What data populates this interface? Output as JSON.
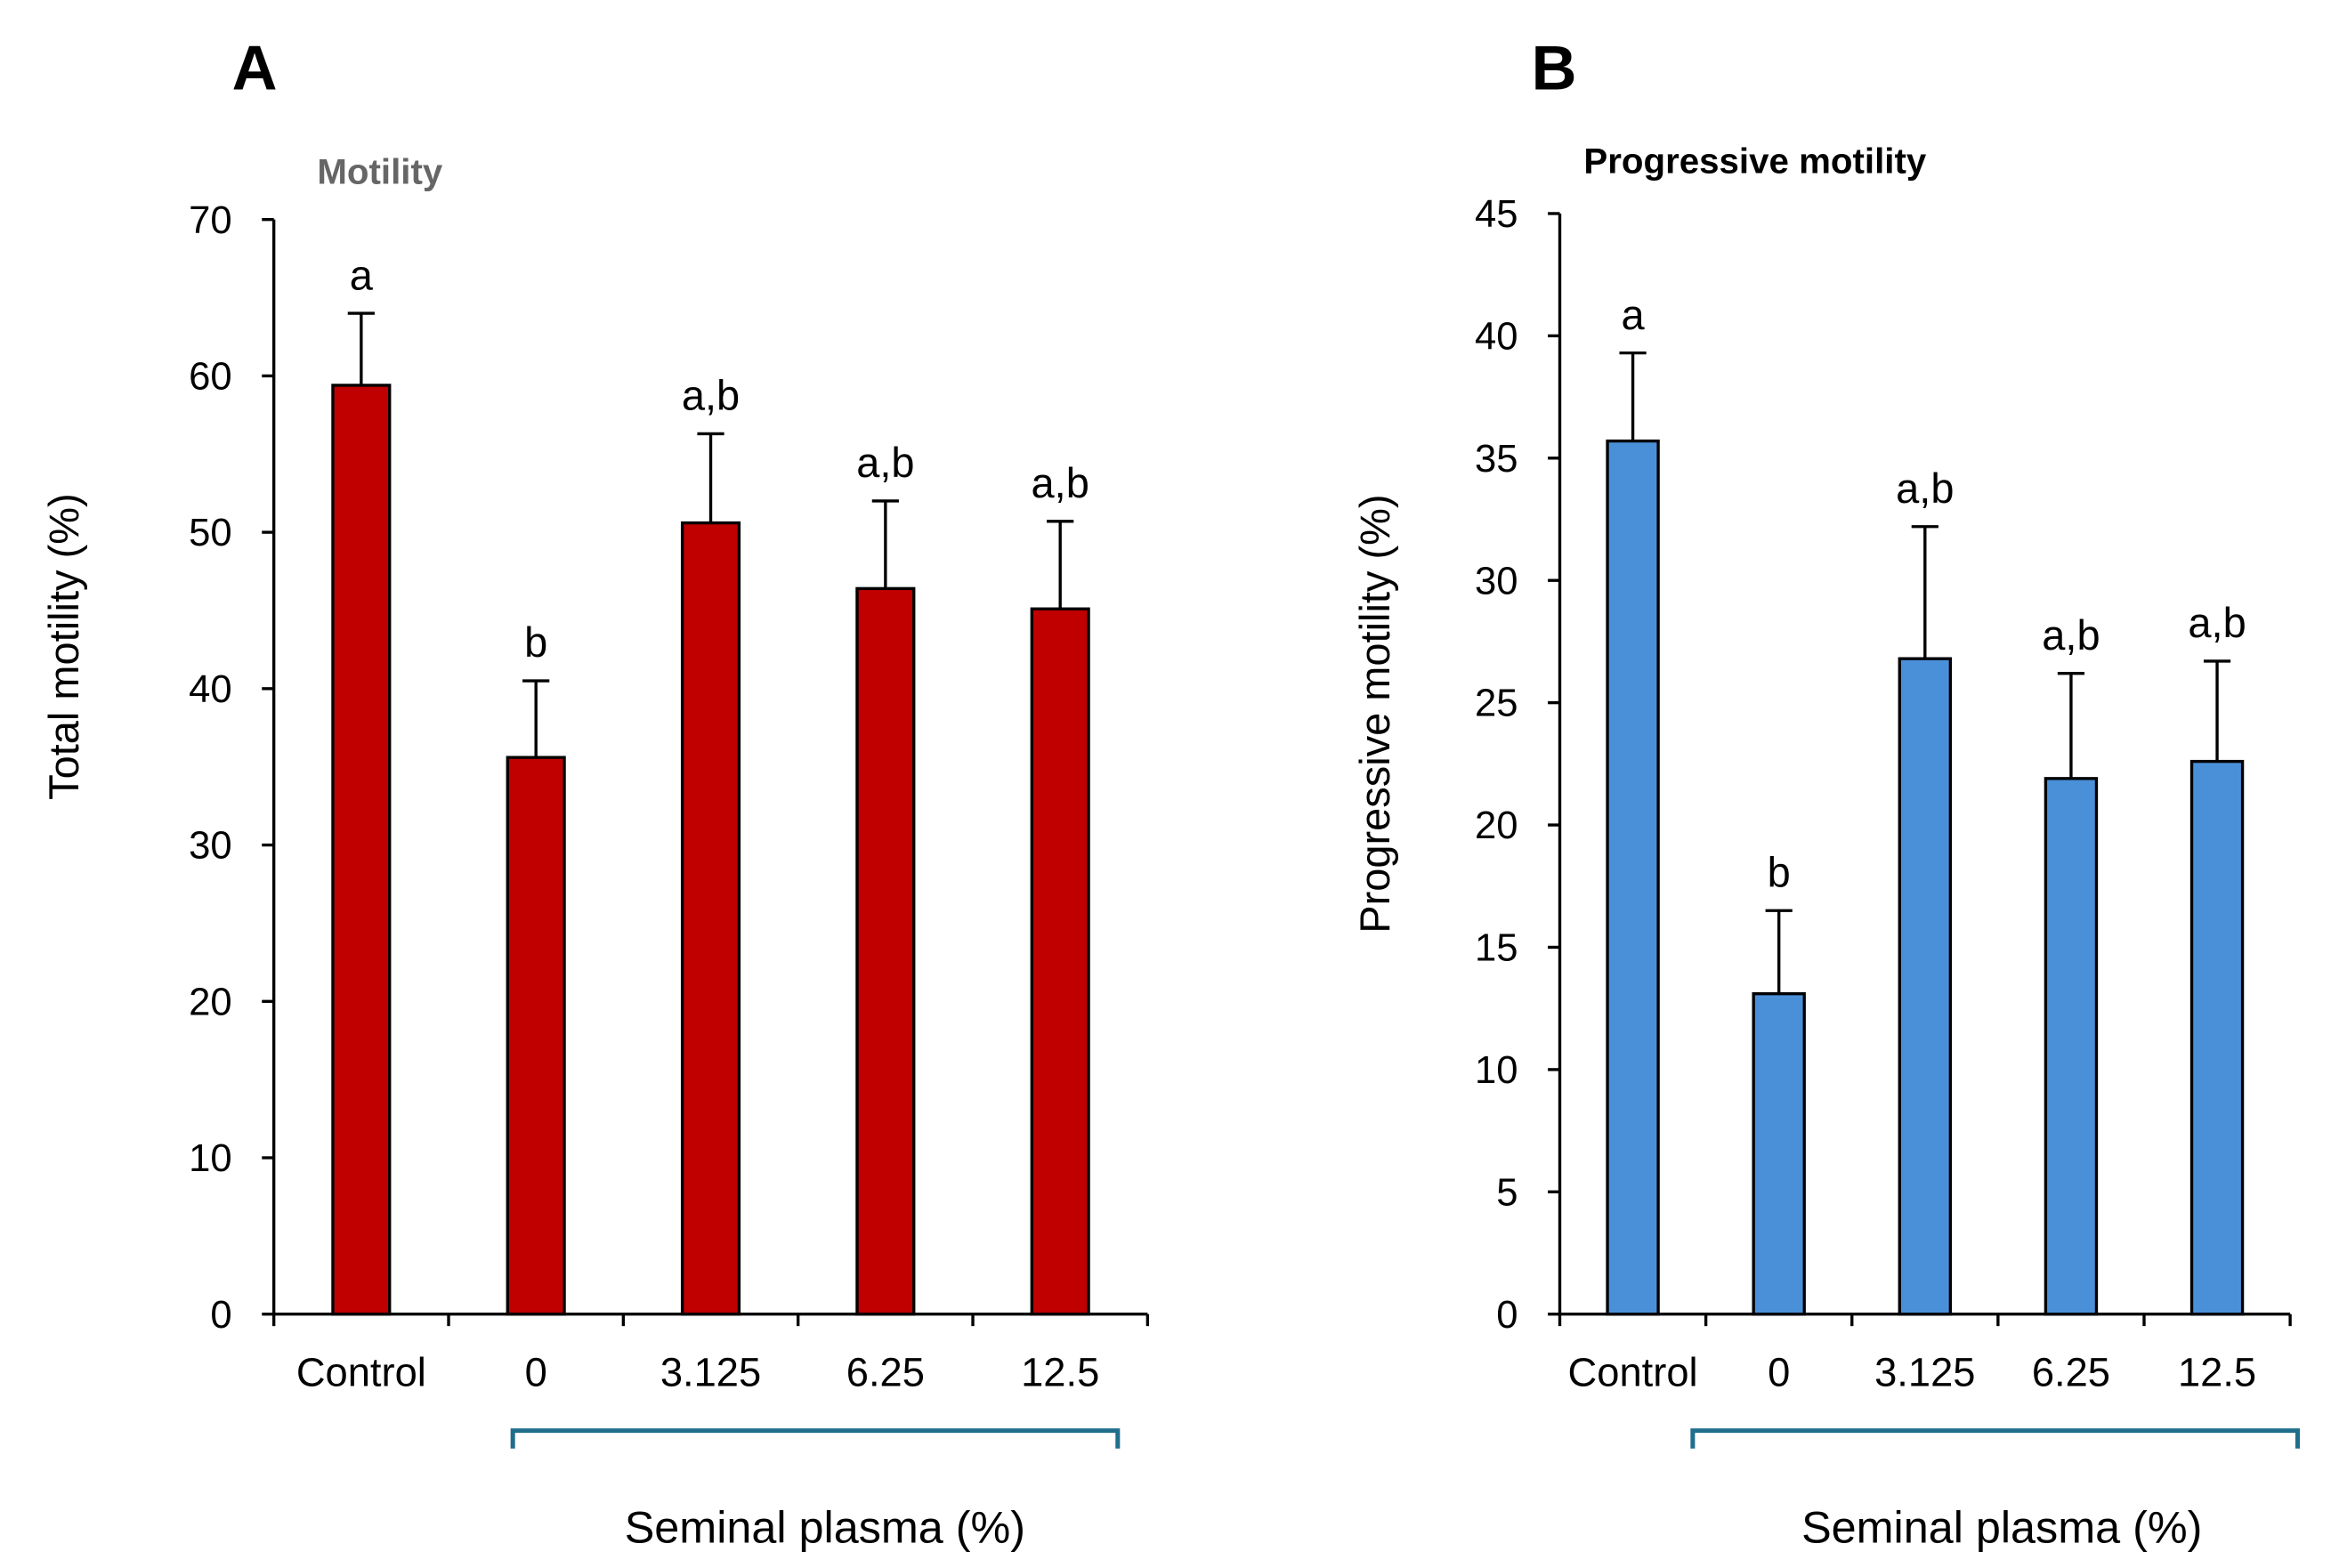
{
  "chart_data": [
    {
      "type": "bar",
      "panel_label": "A",
      "title": "Motility",
      "ylabel": "Total motility (%)",
      "xlabel": "Seminal plasma (%)",
      "categories": [
        "Control",
        "0",
        "3.125",
        "6.25",
        "12.5"
      ],
      "values": [
        59.4,
        35.6,
        50.6,
        46.4,
        45.1
      ],
      "error_upper": [
        64.0,
        40.5,
        56.3,
        52.0,
        50.7
      ],
      "letters": [
        "a",
        "b",
        "a,b",
        "a,b",
        "a,b"
      ],
      "ylim": [
        0,
        70
      ],
      "yticks": [
        0,
        10,
        20,
        30,
        40,
        50,
        60,
        70
      ],
      "color": "#C00000",
      "title_color": "#666666",
      "grid": false
    },
    {
      "type": "bar",
      "panel_label": "B",
      "title": "Progressive motility",
      "ylabel": "Progressive motility (%)",
      "xlabel": "Seminal plasma (%)",
      "categories": [
        "Control",
        "0",
        "3.125",
        "6.25",
        "12.5"
      ],
      "values": [
        35.7,
        13.1,
        26.8,
        21.9,
        22.6
      ],
      "error_upper": [
        39.3,
        16.5,
        32.2,
        26.2,
        26.7
      ],
      "letters": [
        "a",
        "b",
        "a,b",
        "a,b",
        "a,b"
      ],
      "ylim": [
        0,
        45
      ],
      "yticks": [
        0,
        5,
        10,
        15,
        20,
        25,
        30,
        35,
        40,
        45
      ],
      "color": "#4A90D9",
      "title_color": "#000000",
      "grid": false
    }
  ],
  "bracket_color": "#1F6E8C"
}
